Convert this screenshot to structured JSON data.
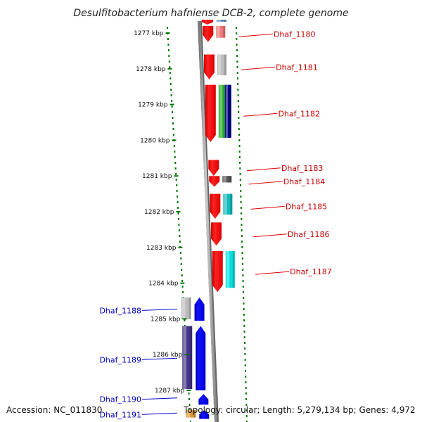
{
  "title": "Desulfitobacterium hafniense DCB-2, complete genome",
  "footer": {
    "accession": "Accession: NC_011830",
    "info": "Topology: circular; Length: 5,279,134 bp; Genes: 4,972"
  },
  "ticks": [
    "1277 kbp",
    "1278 kbp",
    "1279 kbp",
    "1280 kbp",
    "1281 kbp",
    "1282 kbp",
    "1283 kbp",
    "1284 kbp",
    "1285 kbp",
    "1286 kbp",
    "1287 kbp"
  ],
  "forward_genes": [
    {
      "name": "Dhaf_1180",
      "start": 1276.8,
      "end": 1277.25,
      "color2": "#ee7777"
    },
    {
      "name": "Dhaf_1181",
      "start": 1277.6,
      "end": 1278.3,
      "color2": "#bbbbbb"
    },
    {
      "name": "Dhaf_1182",
      "start": 1278.45,
      "end": 1280.05,
      "color2": "#22aa22",
      "color3": "#000088"
    },
    {
      "name": "Dhaf_1183",
      "start": 1280.55,
      "end": 1281.0,
      "color2": ""
    },
    {
      "name": "Dhaf_1184",
      "start": 1281.0,
      "end": 1281.3,
      "color2": "#555555"
    },
    {
      "name": "Dhaf_1185",
      "start": 1281.5,
      "end": 1282.2,
      "color2": "#11bbbb"
    },
    {
      "name": "Dhaf_1186",
      "start": 1282.3,
      "end": 1282.95,
      "color2": ""
    },
    {
      "name": "Dhaf_1187",
      "start": 1283.1,
      "end": 1284.25,
      "color2": "#00dddd"
    }
  ],
  "top_partial_gene": {
    "start": 1276.5,
    "end": 1276.8,
    "color2": "#5588bb"
  },
  "reverse_genes": [
    {
      "name": "Dhaf_1188",
      "start": 1284.4,
      "end": 1285.05,
      "color1": "#bbbbbb"
    },
    {
      "name": "Dhaf_1189",
      "start": 1285.2,
      "end": 1287.0,
      "color1": "#443388"
    },
    {
      "name": "Dhaf_1190",
      "start": 1287.1,
      "end": 1287.4,
      "color1": ""
    },
    {
      "name": "Dhaf_1191",
      "start": 1287.55,
      "end": 1287.8,
      "color1": "#dd9933"
    }
  ],
  "colors": {
    "forward_strand": "#ff0000",
    "reverse_strand": "#0000ee",
    "tick": "#007700",
    "axis": "#999999"
  }
}
